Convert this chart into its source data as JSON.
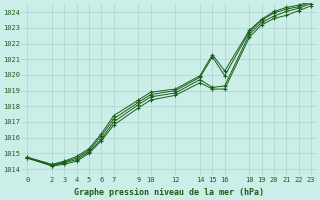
{
  "background_color": "#cceee8",
  "grid_color": "#aad4ce",
  "line_color": "#1a5e1a",
  "marker_color": "#1a5e1a",
  "title": "Graphe pression niveau de la mer (hPa)",
  "ylabel_vals": [
    1014,
    1015,
    1016,
    1017,
    1018,
    1019,
    1020,
    1021,
    1022,
    1023,
    1024
  ],
  "xlim": [
    -0.5,
    23.5
  ],
  "ylim": [
    1013.6,
    1024.6
  ],
  "xticks": [
    0,
    2,
    3,
    4,
    5,
    6,
    7,
    9,
    10,
    12,
    14,
    15,
    16,
    18,
    19,
    20,
    21,
    22,
    23
  ],
  "series": [
    {
      "x": [
        0,
        2,
        3,
        4,
        5,
        6,
        7,
        9,
        10,
        12,
        14,
        15,
        16,
        18,
        19,
        20,
        21,
        22,
        23
      ],
      "y": [
        1014.7,
        1014.2,
        1014.3,
        1014.5,
        1015.0,
        1015.8,
        1016.8,
        1017.9,
        1018.4,
        1018.7,
        1019.5,
        1019.1,
        1019.1,
        1022.4,
        1023.2,
        1023.6,
        1023.8,
        1024.1,
        1024.4
      ]
    },
    {
      "x": [
        0,
        2,
        3,
        4,
        5,
        6,
        7,
        9,
        10,
        12,
        14,
        15,
        16,
        18,
        19,
        20,
        21,
        22,
        23
      ],
      "y": [
        1014.7,
        1014.2,
        1014.4,
        1014.6,
        1015.1,
        1015.9,
        1017.0,
        1018.1,
        1018.6,
        1018.85,
        1019.7,
        1019.2,
        1019.3,
        1022.6,
        1023.35,
        1023.75,
        1024.05,
        1024.25,
        1024.55
      ]
    },
    {
      "x": [
        0,
        2,
        3,
        4,
        5,
        6,
        7,
        9,
        10,
        12,
        14,
        15,
        16,
        18,
        19,
        20,
        21,
        22,
        23
      ],
      "y": [
        1014.75,
        1014.25,
        1014.45,
        1014.7,
        1015.2,
        1016.1,
        1017.2,
        1018.25,
        1018.75,
        1019.0,
        1019.85,
        1021.15,
        1019.95,
        1022.75,
        1023.5,
        1023.95,
        1024.2,
        1024.35,
        1024.65
      ]
    },
    {
      "x": [
        0,
        2,
        3,
        4,
        5,
        6,
        7,
        9,
        10,
        12,
        14,
        15,
        16,
        18,
        19,
        20,
        21,
        22,
        23
      ],
      "y": [
        1014.75,
        1014.3,
        1014.5,
        1014.8,
        1015.3,
        1016.25,
        1017.4,
        1018.4,
        1018.9,
        1019.1,
        1019.95,
        1021.3,
        1020.25,
        1022.85,
        1023.55,
        1024.05,
        1024.3,
        1024.45,
        1024.7
      ]
    }
  ]
}
